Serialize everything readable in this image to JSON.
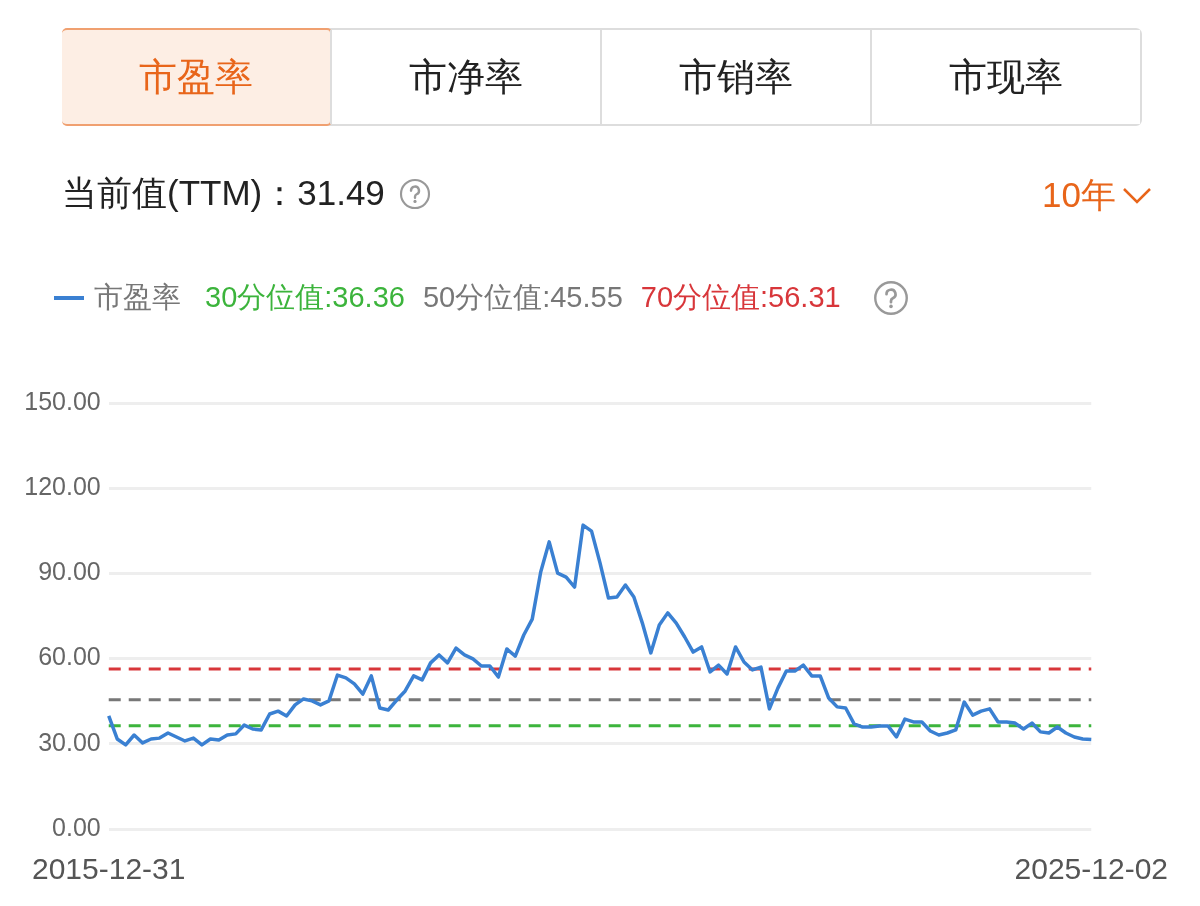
{
  "chart_data": {
    "type": "line",
    "annotations": [
      "市盈率",
      "市净率",
      "市销率",
      "市现率",
      "当前值(TTM)：31.49",
      "10年"
    ],
    "categories": [
      "2015-12-31",
      null,
      null,
      null,
      null,
      null,
      null,
      null,
      null,
      null,
      null,
      null,
      null,
      null,
      null,
      null,
      null,
      null,
      null,
      null,
      null,
      null,
      null,
      null,
      null,
      null,
      null,
      null,
      null,
      null,
      null,
      null,
      null,
      null,
      null,
      null,
      null,
      null,
      null,
      null,
      null,
      null,
      null,
      null,
      null,
      null,
      null,
      null,
      null,
      null,
      null,
      null,
      null,
      null,
      null,
      null,
      null,
      null,
      null,
      null,
      null,
      null,
      null,
      null,
      null,
      null,
      null,
      null,
      null,
      null,
      null,
      null,
      null,
      null,
      null,
      null,
      null,
      null,
      null,
      null,
      null,
      null,
      null,
      null,
      null,
      null,
      null,
      null,
      null,
      null,
      null,
      null,
      null,
      null,
      null,
      null,
      null,
      null,
      null,
      null,
      null,
      null,
      null,
      null,
      null,
      null,
      null,
      null,
      null,
      null,
      null,
      null,
      null,
      null,
      null,
      null,
      "2025-12-02"
    ],
    "series": [
      {
        "name": "市盈率",
        "color": "#3a80d2",
        "values": [
          39.8,
          31.7,
          29.6,
          33.1,
          30.3,
          31.7,
          32,
          33.8,
          32.4,
          31,
          32,
          29.6,
          31.7,
          31.3,
          33.1,
          33.5,
          36.6,
          35.2,
          34.9,
          40.5,
          41.5,
          39.8,
          43.7,
          45.8,
          45.1,
          43.7,
          45.1,
          54.2,
          53.2,
          51.1,
          47.5,
          53.9,
          42.6,
          41.9,
          45.4,
          48.6,
          53.9,
          52.5,
          58.5,
          61.3,
          58.5,
          63.7,
          61.3,
          59.9,
          57.4,
          57.4,
          53.5,
          63.4,
          60.9,
          68.3,
          73.9,
          90.5,
          101.1,
          90.1,
          88.7,
          85.2,
          107,
          104.9,
          93.7,
          81.3,
          81.7,
          85.9,
          81.7,
          72.5,
          62,
          71.8,
          76.1,
          72.5,
          67.6,
          62.3,
          64.1,
          55.3,
          57.7,
          54.6,
          64.1,
          58.8,
          56,
          57,
          42.3,
          49.6,
          55.6,
          55.6,
          57.7,
          53.9,
          53.9,
          46.1,
          43,
          42.6,
          37,
          35.9,
          35.9,
          36.3,
          36.3,
          32.4,
          38.7,
          37.7,
          37.7,
          34.5,
          33.1,
          33.8,
          34.9,
          44.7,
          40.1,
          41.5,
          42.3,
          37.7,
          37.7,
          37.3,
          35.2,
          37.3,
          34.2,
          33.8,
          35.9,
          33.8,
          32.4,
          31.7,
          31.5
        ]
      }
    ],
    "ylim": [
      0,
      150
    ],
    "yticks": [
      {
        "value": 0,
        "label": "0.00"
      },
      {
        "value": 30,
        "label": "30.00"
      },
      {
        "value": 60,
        "label": "60.00"
      },
      {
        "value": 90,
        "label": "90.00"
      },
      {
        "value": 120,
        "label": "120.00"
      },
      {
        "value": 150,
        "label": "150.00"
      }
    ],
    "ref_lines": [
      {
        "axis": "y",
        "value": 36.36,
        "label": "30分位值:36.36",
        "color": "#3cb43c",
        "line_style": "dashed"
      },
      {
        "axis": "y",
        "value": 45.55,
        "label": "50分位值:45.55",
        "color": "#777777",
        "line_style": "dashed"
      },
      {
        "axis": "y",
        "value": 56.31,
        "label": "70分位值:56.31",
        "color": "#d8363a",
        "line_style": "dashed"
      }
    ],
    "grid": "y",
    "legend": "top left",
    "marker": "none",
    "line_style": "solid"
  }
}
